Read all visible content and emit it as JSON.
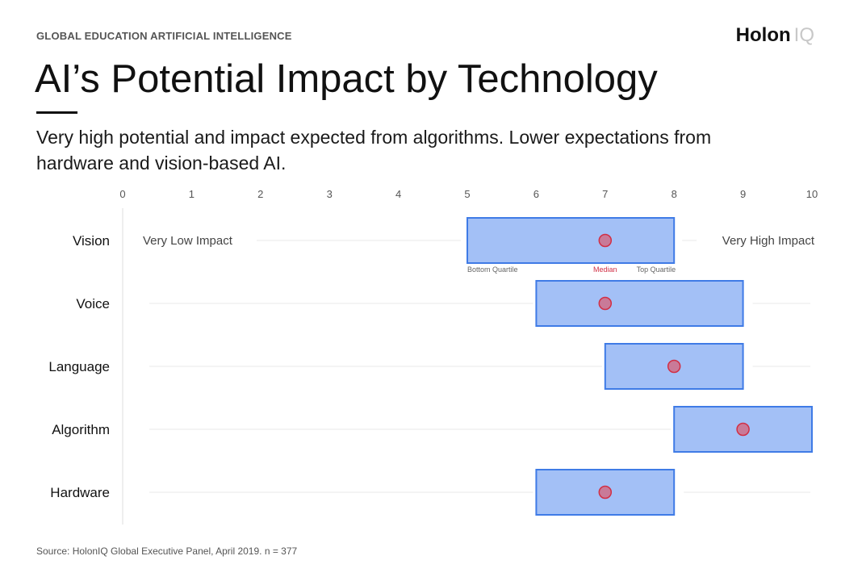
{
  "header": {
    "kicker": "GLOBAL EDUCATION ARTIFICIAL INTELLIGENCE",
    "brand_main": "Holon",
    "brand_suffix": "IQ",
    "title": "AI’s Potential Impact by Technology",
    "subtitle": "Very high potential and impact expected from algorithms. Lower expectations from hardware and vision-based AI."
  },
  "footer": {
    "source": "Source: HolonIQ Global Executive Panel, April 2019. n = 377"
  },
  "chart_data": {
    "type": "box",
    "x_range": [
      0,
      10
    ],
    "x_ticks": [
      "0",
      "1",
      "2",
      "3",
      "4",
      "5",
      "6",
      "7",
      "8",
      "9",
      "10"
    ],
    "categories": [
      "Vision",
      "Voice",
      "Language",
      "Algorithm",
      "Hardware"
    ],
    "series": [
      {
        "category": "Vision",
        "bottom_quartile": 5,
        "median": 7,
        "top_quartile": 8
      },
      {
        "category": "Voice",
        "bottom_quartile": 6,
        "median": 7,
        "top_quartile": 9
      },
      {
        "category": "Language",
        "bottom_quartile": 7,
        "median": 8,
        "top_quartile": 9
      },
      {
        "category": "Algorithm",
        "bottom_quartile": 8,
        "median": 9,
        "top_quartile": 10
      },
      {
        "category": "Hardware",
        "bottom_quartile": 6,
        "median": 7,
        "top_quartile": 8
      }
    ],
    "range_labels": {
      "low": "Very Low Impact",
      "high": "Very High Impact"
    },
    "box_labels": {
      "bottom": "Bottom Quartile",
      "median": "Median",
      "top": "Top Quartile"
    },
    "colors": {
      "box_fill": "#a3c0f6",
      "box_stroke": "#3f7be6",
      "median_fill": "#c97a98",
      "median_stroke": "#d12f45",
      "median_label": "#d12f45",
      "guide_line": "#e8e8e8",
      "axis_text": "#555555"
    }
  }
}
